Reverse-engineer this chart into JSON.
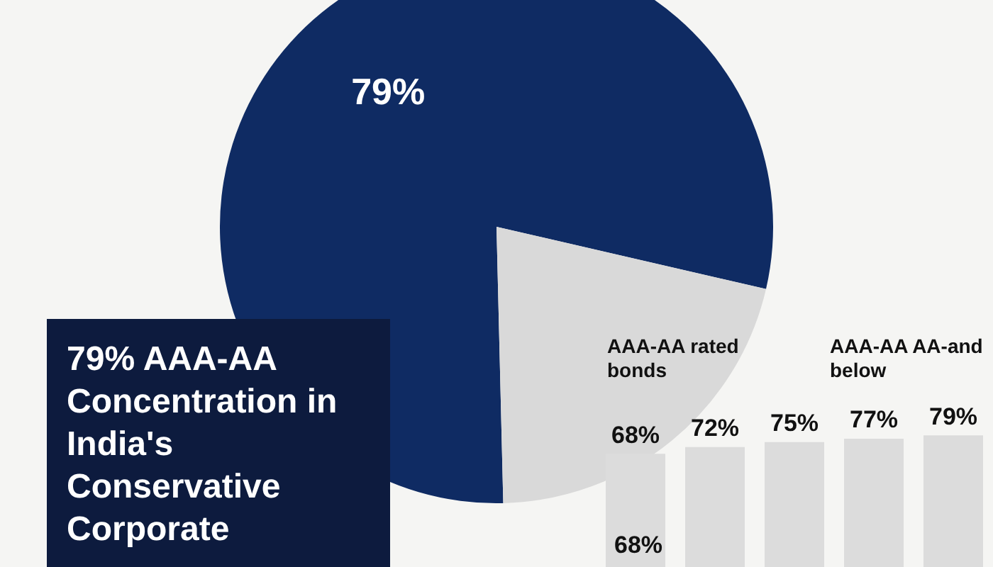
{
  "chart_data": [
    {
      "type": "pie",
      "title": "79% AAA-AA Concentration in India's Conservative Corporate",
      "categories": [
        null,
        null
      ],
      "values": [
        79,
        21
      ],
      "colors": [
        "#0f2b63",
        "#d9d9d9"
      ],
      "value_labels": [
        "79%",
        null
      ],
      "legend": false
    },
    {
      "type": "bar",
      "categories": [
        null,
        null,
        null,
        null,
        null
      ],
      "values": [
        68,
        72,
        75,
        77,
        79
      ],
      "color": "#dcdcdc",
      "value_labels": [
        "68%",
        "72%",
        "75%",
        "77%",
        "79%"
      ],
      "tick_labels": false,
      "annotations": [
        "AAA-AA rated bonds",
        "AAA-AA AA-and below",
        "68%"
      ]
    }
  ]
}
